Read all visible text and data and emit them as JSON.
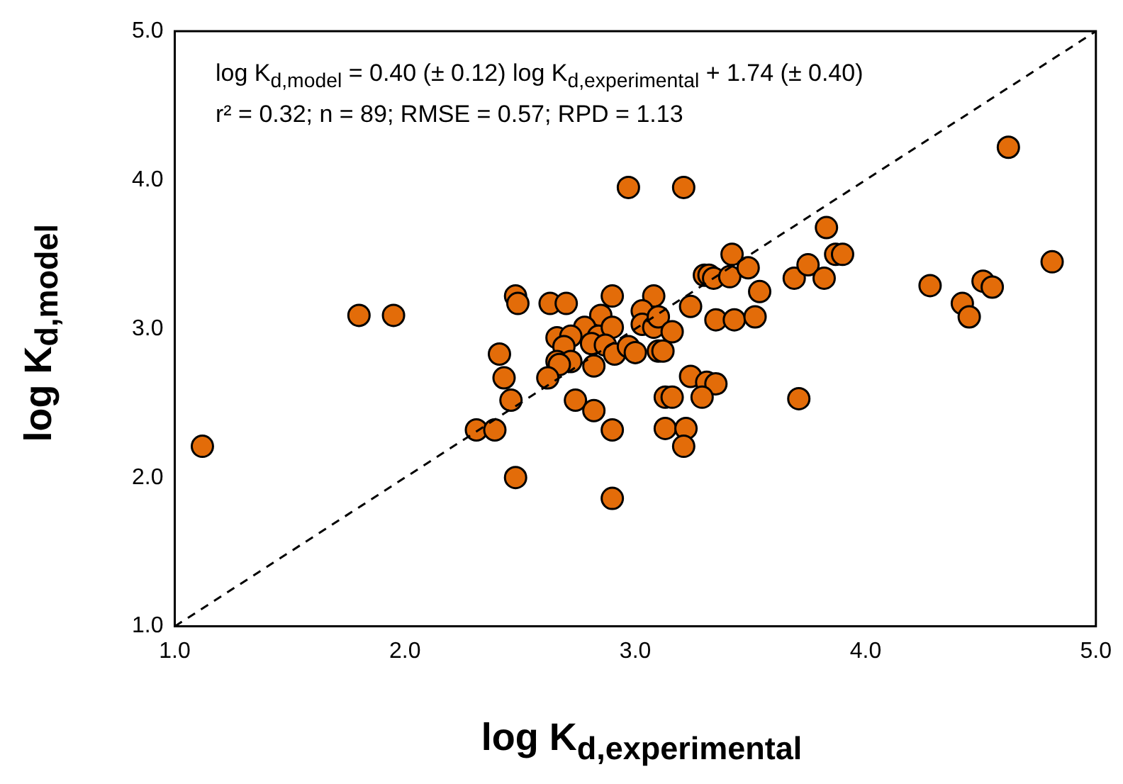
{
  "chart_data": {
    "type": "scatter",
    "xlabel": "log K$_{d,experimental}$",
    "ylabel": "log K$_{d,model}$",
    "annotations": [
      "log K$_{d,model}$ = 0.40 (± 0.12) log K$_{d,experimental}$ + 1.74 (± 0.40)",
      "r² = 0.32; n = 89; RMSE = 0.57; RPD = 1.13"
    ],
    "xlim": [
      1,
      5
    ],
    "ylim": [
      1,
      5
    ],
    "xticks": [
      {
        "value": 1,
        "label": "1.0"
      },
      {
        "value": 2,
        "label": "2.0"
      },
      {
        "value": 3,
        "label": "3.0"
      },
      {
        "value": 4,
        "label": "4.0"
      },
      {
        "value": 5,
        "label": "5.0"
      }
    ],
    "yticks": [
      {
        "value": 1,
        "label": "1.0"
      },
      {
        "value": 2,
        "label": "2.0"
      },
      {
        "value": 3,
        "label": "3.0"
      },
      {
        "value": 4,
        "label": "4.0"
      },
      {
        "value": 5,
        "label": "5.0"
      }
    ],
    "grid": false,
    "legend": false,
    "marker": "circle",
    "series": [
      {
        "type": "line",
        "color": "#000000",
        "line_style": "dashed",
        "marker": "none",
        "x": [
          1,
          5
        ],
        "values": [
          1,
          5
        ]
      },
      {
        "type": "scatter",
        "color": "#e36c09",
        "x": [
          1.12,
          1.8,
          1.95,
          2.97,
          3.21,
          4.62,
          2.48,
          2.49,
          2.63,
          2.7,
          2.9,
          3.08,
          2.85,
          2.78,
          2.66,
          2.72,
          2.84,
          2.9,
          3.03,
          3.03,
          3.08,
          3.1,
          3.16,
          3.24,
          2.69,
          2.81,
          2.87,
          2.91,
          2.97,
          3.0,
          3.1,
          3.12,
          2.66,
          2.72,
          2.67,
          2.82,
          2.62,
          2.41,
          2.43,
          2.46,
          2.74,
          2.82,
          2.31,
          2.39,
          2.9,
          3.13,
          3.16,
          3.24,
          3.31,
          3.35,
          3.29,
          3.13,
          3.22,
          3.21,
          2.48,
          2.9,
          3.42,
          3.3,
          3.32,
          3.34,
          3.41,
          3.49,
          3.54,
          3.69,
          3.35,
          3.43,
          3.52,
          3.71,
          3.83,
          3.87,
          3.9,
          3.75,
          3.82,
          4.28,
          4.51,
          4.55,
          4.42,
          4.45,
          4.81
        ],
        "values": [
          2.21,
          3.09,
          3.09,
          3.95,
          3.95,
          4.22,
          3.22,
          3.17,
          3.17,
          3.17,
          3.22,
          3.22,
          3.09,
          3.01,
          2.94,
          2.95,
          2.95,
          3.01,
          3.12,
          3.03,
          3.01,
          3.08,
          2.98,
          3.15,
          2.88,
          2.9,
          2.89,
          2.83,
          2.88,
          2.84,
          2.85,
          2.85,
          2.78,
          2.78,
          2.76,
          2.75,
          2.67,
          2.83,
          2.67,
          2.52,
          2.52,
          2.45,
          2.32,
          2.32,
          2.32,
          2.54,
          2.54,
          2.68,
          2.64,
          2.63,
          2.54,
          2.33,
          2.33,
          2.21,
          2.0,
          1.86,
          3.5,
          3.36,
          3.36,
          3.34,
          3.35,
          3.41,
          3.25,
          3.34,
          3.06,
          3.06,
          3.08,
          2.53,
          3.68,
          3.5,
          3.5,
          3.43,
          3.34,
          3.29,
          3.32,
          3.28,
          3.17,
          3.08,
          3.45
        ]
      }
    ]
  }
}
